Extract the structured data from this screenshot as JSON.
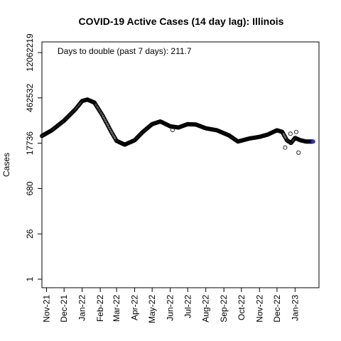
{
  "chart_data": {
    "type": "scatter",
    "title": "COVID-19 Active Cases (14 day lag): Illinois",
    "xlabel": "",
    "ylabel": "Cases",
    "y_scale": "log",
    "ylim": [
      1,
      12062219
    ],
    "y_ticks": [
      "1",
      "26",
      "680",
      "17736",
      "462532",
      "12062219"
    ],
    "x_ticks": [
      "Nov-21",
      "Dec-21",
      "Jan-22",
      "Feb-22",
      "Mar-22",
      "Apr-22",
      "May-22",
      "Jun-22",
      "Jul-22",
      "Aug-22",
      "Sep-22",
      "Oct-22",
      "Nov-22",
      "Dec-22",
      "Jan-23"
    ],
    "xlim": [
      "2021-10-24",
      "2023-02-11"
    ],
    "annotation": "Days to double (past 7 days): 211.7",
    "marker": "open-circle",
    "last_point_color": "#2b2bd6",
    "key_points": [
      {
        "x": "2021-10-24",
        "y": 30000
      },
      {
        "x": "2021-11-10",
        "y": 45000
      },
      {
        "x": "2021-12-01",
        "y": 90000
      },
      {
        "x": "2021-12-20",
        "y": 200000
      },
      {
        "x": "2022-01-01",
        "y": 370000
      },
      {
        "x": "2022-01-10",
        "y": 410000
      },
      {
        "x": "2022-01-22",
        "y": 330000
      },
      {
        "x": "2022-02-05",
        "y": 130000
      },
      {
        "x": "2022-02-20",
        "y": 40000
      },
      {
        "x": "2022-03-01",
        "y": 21000
      },
      {
        "x": "2022-03-15",
        "y": 16000
      },
      {
        "x": "2022-04-01",
        "y": 22000
      },
      {
        "x": "2022-04-15",
        "y": 40000
      },
      {
        "x": "2022-05-01",
        "y": 70000
      },
      {
        "x": "2022-05-15",
        "y": 85000
      },
      {
        "x": "2022-06-01",
        "y": 60000
      },
      {
        "x": "2022-06-15",
        "y": 55000
      },
      {
        "x": "2022-07-01",
        "y": 70000
      },
      {
        "x": "2022-07-15",
        "y": 68000
      },
      {
        "x": "2022-08-01",
        "y": 52000
      },
      {
        "x": "2022-08-20",
        "y": 45000
      },
      {
        "x": "2022-09-10",
        "y": 31000
      },
      {
        "x": "2022-09-25",
        "y": 20000
      },
      {
        "x": "2022-10-15",
        "y": 25000
      },
      {
        "x": "2022-11-01",
        "y": 28000
      },
      {
        "x": "2022-11-15",
        "y": 33000
      },
      {
        "x": "2022-12-01",
        "y": 45000
      },
      {
        "x": "2022-12-10",
        "y": 40000
      },
      {
        "x": "2022-12-18",
        "y": 22000
      },
      {
        "x": "2022-12-25",
        "y": 18000
      },
      {
        "x": "2023-01-01",
        "y": 26000
      },
      {
        "x": "2023-01-10",
        "y": 22000
      },
      {
        "x": "2023-01-20",
        "y": 20000
      },
      {
        "x": "2023-02-01",
        "y": 20000
      }
    ],
    "outliers": [
      {
        "x": "2022-06-05",
        "y": 46000
      },
      {
        "x": "2022-12-15",
        "y": 13000
      },
      {
        "x": "2022-12-24",
        "y": 35000
      },
      {
        "x": "2023-01-03",
        "y": 40000
      },
      {
        "x": "2023-01-07",
        "y": 9000
      }
    ]
  }
}
